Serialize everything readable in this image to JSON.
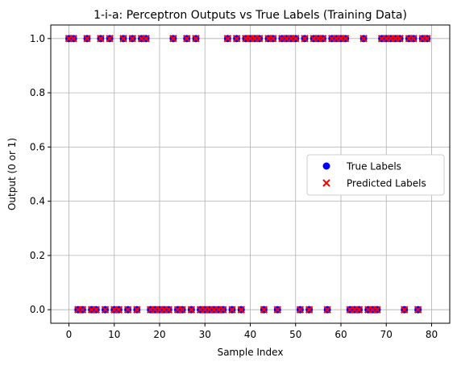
{
  "chart_data": {
    "type": "scatter",
    "title": "1-i-a: Perceptron Outputs vs True Labels (Training Data)",
    "xlabel": "Sample Index",
    "ylabel": "Output (0 or 1)",
    "xlim": [
      -4,
      84
    ],
    "ylim": [
      -0.05,
      1.05
    ],
    "xticks": [
      0,
      10,
      20,
      30,
      40,
      50,
      60,
      70,
      80
    ],
    "yticks": [
      0.0,
      0.2,
      0.4,
      0.6,
      0.8,
      1.0
    ],
    "ytick_labels": [
      "0.0",
      "0.2",
      "0.4",
      "0.6",
      "0.8",
      "1.0"
    ],
    "grid": true,
    "legend_position": "center-right",
    "x": [
      0,
      1,
      2,
      3,
      4,
      5,
      6,
      7,
      8,
      9,
      10,
      11,
      12,
      13,
      14,
      15,
      16,
      17,
      18,
      19,
      20,
      21,
      22,
      23,
      24,
      25,
      26,
      27,
      28,
      29,
      30,
      31,
      32,
      33,
      34,
      35,
      36,
      37,
      38,
      39,
      40,
      41,
      42,
      43,
      44,
      45,
      46,
      47,
      48,
      49,
      50,
      51,
      52,
      53,
      54,
      55,
      56,
      57,
      58,
      59,
      60,
      61,
      62,
      63,
      64,
      65,
      66,
      67,
      68,
      69,
      70,
      71,
      72,
      73,
      74,
      75,
      76,
      77,
      78,
      79
    ],
    "series": [
      {
        "name": "True Labels",
        "marker": "circle",
        "color": "#0000ff",
        "values": [
          1,
          1,
          0,
          0,
          1,
          0,
          0,
          1,
          0,
          1,
          0,
          0,
          1,
          0,
          1,
          0,
          1,
          1,
          0,
          0,
          0,
          0,
          0,
          1,
          0,
          0,
          1,
          0,
          1,
          0,
          0,
          0,
          0,
          0,
          0,
          1,
          0,
          1,
          0,
          1,
          1,
          1,
          1,
          0,
          1,
          1,
          0,
          1,
          1,
          1,
          1,
          0,
          1,
          0,
          1,
          1,
          1,
          0,
          1,
          1,
          1,
          1,
          0,
          0,
          0,
          1,
          0,
          0,
          0,
          1,
          1,
          1,
          1,
          1,
          0,
          1,
          1,
          0,
          1,
          1
        ]
      },
      {
        "name": "Predicted Labels",
        "marker": "x",
        "color": "#ff0000",
        "values": [
          1,
          1,
          0,
          0,
          1,
          0,
          0,
          1,
          0,
          1,
          0,
          0,
          1,
          0,
          1,
          0,
          1,
          1,
          0,
          0,
          0,
          0,
          0,
          1,
          0,
          0,
          1,
          0,
          1,
          0,
          0,
          0,
          0,
          0,
          0,
          1,
          0,
          1,
          0,
          1,
          1,
          1,
          1,
          0,
          1,
          1,
          0,
          1,
          1,
          1,
          1,
          0,
          1,
          0,
          1,
          1,
          1,
          0,
          1,
          1,
          1,
          1,
          0,
          0,
          0,
          1,
          0,
          0,
          0,
          1,
          1,
          1,
          1,
          1,
          0,
          1,
          1,
          0,
          1,
          1
        ]
      }
    ]
  }
}
